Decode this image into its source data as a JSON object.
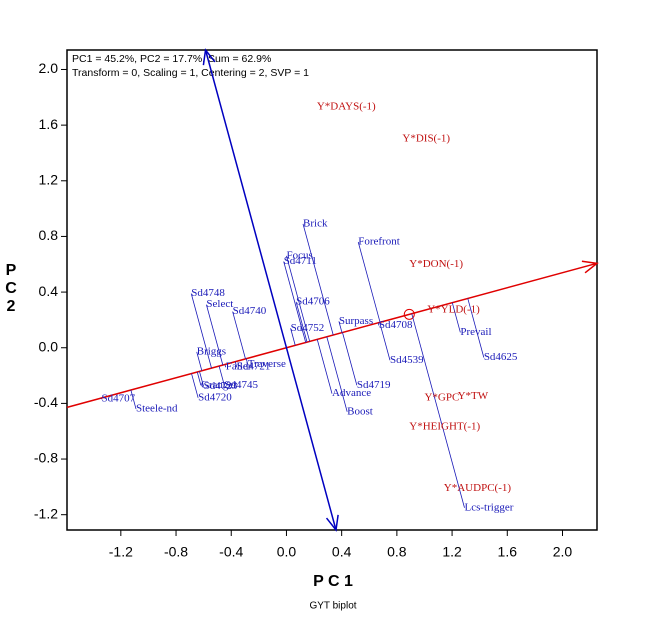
{
  "chart_data": {
    "type": "biplot",
    "header": [
      "PC1 = 45.2%, PC2 = 17.7%, Sum = 62.9%",
      "Transform = 0, Scaling = 1, Centering = 2, SVP = 1"
    ],
    "xlabel": "P C 1",
    "ylabel": "P C 2",
    "caption": "GYT biplot",
    "xlim": [
      -1.59,
      2.25
    ],
    "ylim": [
      -1.31,
      2.14
    ],
    "xticks": [
      -1.2,
      -0.8,
      -0.4,
      {
        "value": 0,
        "label": "0.0"
      },
      0.4,
      0.8,
      1.2,
      1.6,
      {
        "value": 2,
        "label": "2.0"
      }
    ],
    "yticks": [
      -1.2,
      -0.8,
      -0.4,
      {
        "value": 0,
        "label": "0.0"
      },
      0.4,
      0.8,
      1.2,
      1.6,
      {
        "value": 2,
        "label": "2.0"
      }
    ],
    "average": {
      "x": 0.89,
      "y": 0.24,
      "color": "#e00000"
    },
    "axis_colors": {
      "average": "#e00000",
      "ordinate": "#0000c0"
    },
    "genotypes": {
      "color": "#1a1ab8",
      "labels": [
        "Brick",
        "Forefront",
        "Focus",
        "Sd4711",
        "Sd4748",
        "Select",
        "Sd4740",
        "Sd4706",
        "Surpass",
        "Sd4708",
        "Sd4752",
        "Prevail",
        "Sd4625",
        "Sd4539",
        "Briggs",
        "Traverse",
        "Faller",
        "Sd4721",
        "Sd4745",
        "Granger",
        "Sd4723",
        "Sd4720",
        "Sd4719",
        "Advance",
        "Boost",
        "Sd4707",
        "Steele-nd",
        "Lcs-trigger"
      ],
      "x": [
        0.12,
        0.52,
        0.0,
        -0.02,
        -0.69,
        -0.58,
        -0.39,
        0.07,
        0.38,
        0.67,
        0.03,
        1.26,
        1.43,
        0.75,
        -0.65,
        -0.28,
        -0.44,
        -0.36,
        -0.45,
        -0.62,
        -0.6,
        -0.64,
        0.51,
        0.33,
        0.44,
        -1.34,
        -1.09,
        1.29
      ],
      "y": [
        0.89,
        0.76,
        0.66,
        0.62,
        0.39,
        0.31,
        0.26,
        0.33,
        0.19,
        0.16,
        0.14,
        0.11,
        -0.07,
        -0.09,
        -0.03,
        -0.12,
        -0.14,
        -0.14,
        -0.27,
        -0.27,
        -0.28,
        -0.36,
        -0.27,
        -0.33,
        -0.46,
        -0.37,
        -0.44,
        -1.15
      ]
    },
    "traits": {
      "color": "#c01010",
      "labels": [
        "Y*DAYS(-1)",
        "Y*DIS(-1)",
        "Y*DON(-1)",
        "Y*YLD(-1)",
        "Y*GPC",
        "Y*TW",
        "Y*HEIGHT(-1)",
        "Y*AUDPC(-1)"
      ],
      "x": [
        0.22,
        0.84,
        0.89,
        1.02,
        1.0,
        1.24,
        0.89,
        1.14
      ],
      "y": [
        1.73,
        1.5,
        0.6,
        0.27,
        -0.36,
        -0.35,
        -0.57,
        -1.01
      ]
    }
  }
}
